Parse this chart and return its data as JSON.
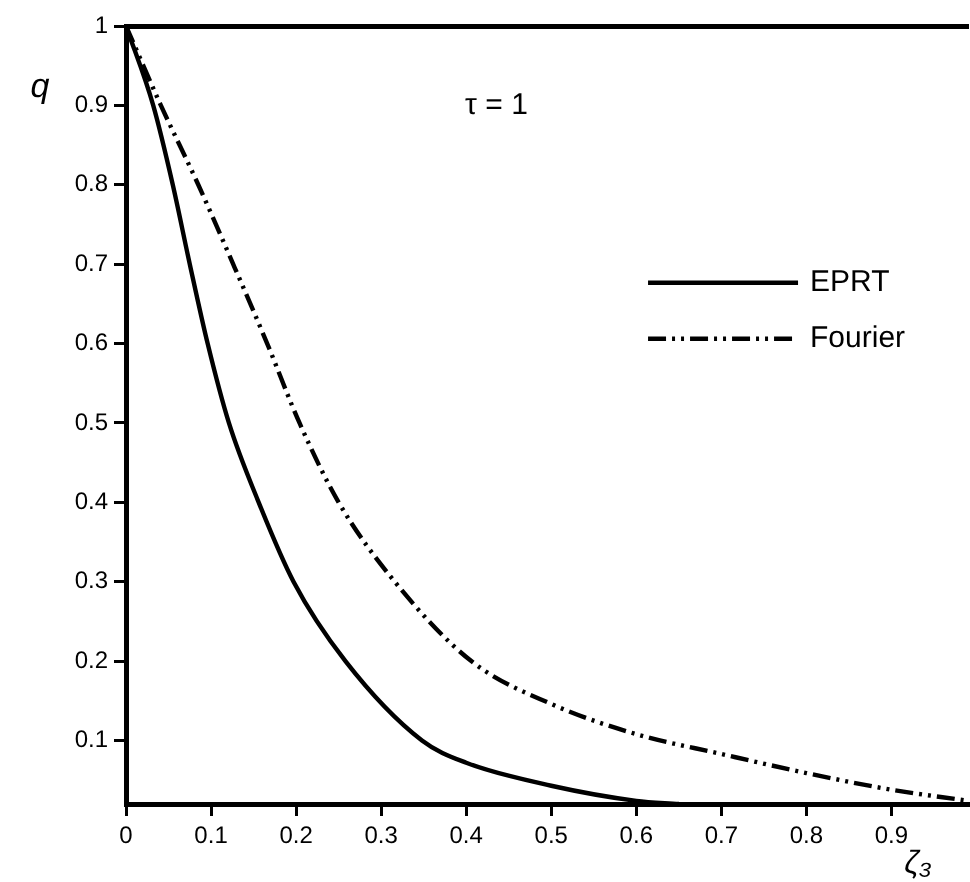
{
  "chart_data": {
    "type": "line",
    "xlabel": "ζ₃",
    "ylabel": "q",
    "annotations": [
      "τ = 1"
    ],
    "xlim": [
      0,
      0.99
    ],
    "ylim": [
      0.02,
      1
    ],
    "xticks": [
      0,
      0.1,
      0.2,
      0.3,
      0.4,
      0.5,
      0.6,
      0.7,
      0.8,
      0.9
    ],
    "yticks": [
      0.1,
      0.2,
      0.3,
      0.4,
      0.5,
      0.6,
      0.7,
      0.8,
      0.9,
      1
    ],
    "grid": false,
    "legend": "right",
    "marker": "none",
    "series": [
      {
        "name": "EPRT",
        "color": "#000000",
        "line_style": "solid",
        "x": [
          0,
          0.032,
          0.055,
          0.075,
          0.096,
          0.121,
          0.156,
          0.197,
          0.258,
          0.348,
          0.4,
          0.5,
          0.6,
          0.65
        ],
        "values": [
          1,
          0.9,
          0.8,
          0.7,
          0.6,
          0.5,
          0.4,
          0.3,
          0.2,
          0.1,
          0.072,
          0.043,
          0.024,
          0.02
        ]
      },
      {
        "name": "Fourier",
        "color": "#000000",
        "line_style": "dashed",
        "x": [
          0,
          0.041,
          0.085,
          0.126,
          0.166,
          0.204,
          0.25,
          0.316,
          0.406,
          0.5,
          0.6,
          0.7,
          0.8,
          0.9,
          0.99
        ],
        "values": [
          1,
          0.9,
          0.8,
          0.7,
          0.6,
          0.5,
          0.4,
          0.3,
          0.2,
          0.146,
          0.108,
          0.083,
          0.059,
          0.038,
          0.024
        ]
      }
    ]
  }
}
